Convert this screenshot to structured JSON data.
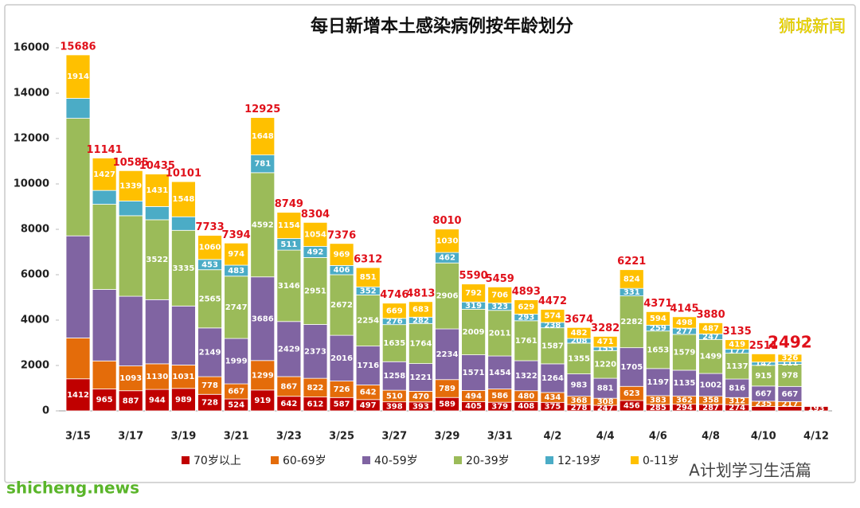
{
  "chart_data": {
    "type": "stacked_bar",
    "title": "每日新增本土感染病例按年龄划分",
    "watermark": "狮城新闻",
    "footer_site": "shicheng.news",
    "footer_account": "A计划学习生活篇",
    "categories": [
      "3/15",
      null,
      "3/17",
      null,
      "3/19",
      null,
      "3/21",
      null,
      "3/23",
      null,
      "3/25",
      null,
      "3/27",
      null,
      "3/29",
      null,
      "3/31",
      null,
      "4/2",
      null,
      "4/4",
      null,
      "4/6",
      null,
      "4/8",
      null,
      "4/10",
      null,
      "4/12"
    ],
    "ylim": [
      0,
      16000
    ],
    "yticks": [
      0,
      2000,
      4000,
      6000,
      8000,
      10000,
      12000,
      14000,
      16000
    ],
    "grid": false,
    "series": [
      {
        "name": "70岁以上",
        "color": "#c00000",
        "values": [
          1412,
          965,
          887,
          944,
          989,
          728,
          524,
          919,
          642,
          612,
          587,
          497,
          398,
          393,
          589,
          405,
          379,
          408,
          375,
          278,
          247,
          456,
          285,
          294,
          287,
          274,
          191,
          193,
          193
        ],
        "value_labels": [
          "1412",
          "965",
          "887",
          "944",
          "989",
          "728",
          "524",
          "919",
          "642",
          "612",
          "587",
          "497",
          "398",
          "393",
          "589",
          "405",
          "379",
          "408",
          "375",
          "278",
          "247",
          "456",
          "285",
          "294",
          "287",
          "274",
          null,
          null,
          "193"
        ]
      },
      {
        "name": "60-69岁",
        "color": "#e46c0a",
        "values": [
          1800,
          1235,
          1093,
          1130,
          1031,
          778,
          667,
          1299,
          867,
          822,
          726,
          642,
          510,
          470,
          789,
          494,
          586,
          480,
          434,
          368,
          308,
          623,
          383,
          362,
          358,
          312,
          235,
          217,
          null
        ],
        "value_labels": [
          null,
          null,
          "1093",
          "1130",
          "1031",
          "778",
          "667",
          "1299",
          "867",
          "822",
          "726",
          "642",
          "510",
          "470",
          "789",
          "494",
          "586",
          "480",
          "434",
          "368",
          "308",
          "623",
          "383",
          "362",
          "358",
          "312",
          "235",
          "217",
          null
        ]
      },
      {
        "name": "40-59岁",
        "color": "#8064a2",
        "values": [
          4500,
          3150,
          3070,
          2826,
          2600,
          2149,
          1999,
          3686,
          2429,
          2373,
          2016,
          1716,
          1258,
          1221,
          2234,
          1571,
          1454,
          1322,
          1264,
          983,
          881,
          1705,
          1197,
          1135,
          1002,
          816,
          667,
          667,
          null
        ],
        "value_labels": [
          null,
          null,
          null,
          null,
          null,
          "2149",
          "1999",
          "3686",
          "2429",
          "2373",
          "2016",
          "1716",
          "1258",
          "1221",
          "2234",
          "1571",
          "1454",
          "1322",
          "1264",
          "983",
          "881",
          "1705",
          "1197",
          "1135",
          "1002",
          "816",
          "667",
          "667",
          null
        ]
      },
      {
        "name": "20-39岁",
        "color": "#9bbb59",
        "values": [
          5180,
          3754,
          3550,
          3522,
          3335,
          2565,
          2747,
          4592,
          3146,
          2951,
          2672,
          2254,
          1635,
          1764,
          2906,
          2009,
          2011,
          1761,
          1587,
          1355,
          1220,
          2282,
          1653,
          1579,
          1499,
          1137,
          915,
          978,
          null
        ],
        "value_labels": [
          null,
          null,
          null,
          "3522",
          "3335",
          "2565",
          "2747",
          "4592",
          "3146",
          "2951",
          "2672",
          "2254",
          "1635",
          "1764",
          "2906",
          "2009",
          "2011",
          "1761",
          "1587",
          "1355",
          "1220",
          "2282",
          "1653",
          "1579",
          "1499",
          "1137",
          "915",
          "978",
          null
        ]
      },
      {
        "name": "12-19岁",
        "color": "#4bacc6",
        "values": [
          880,
          610,
          646,
          582,
          598,
          453,
          483,
          781,
          511,
          492,
          406,
          352,
          276,
          282,
          462,
          319,
          323,
          293,
          238,
          208,
          155,
          331,
          259,
          277,
          247,
          177,
          142,
          111,
          null
        ],
        "value_labels": [
          null,
          null,
          null,
          null,
          null,
          "453",
          "483",
          "781",
          "511",
          "492",
          "406",
          "352",
          "276",
          "282",
          "462",
          "319",
          "323",
          "293",
          "238",
          "208",
          "155",
          "331",
          "259",
          "277",
          "247",
          "177",
          "142",
          "111",
          null
        ]
      },
      {
        "name": "0-11岁",
        "color": "#ffc000",
        "values": [
          1914,
          1427,
          1339,
          1431,
          1548,
          1060,
          974,
          1648,
          1154,
          1054,
          969,
          851,
          669,
          683,
          1030,
          792,
          706,
          629,
          574,
          482,
          471,
          824,
          594,
          498,
          487,
          419,
          361,
          326,
          null
        ],
        "value_labels": [
          "1914",
          "1427",
          "1339",
          "1431",
          "1548",
          "1060",
          "974",
          "1648",
          "1154",
          "1054",
          "969",
          "851",
          "669",
          "683",
          "1030",
          "792",
          "706",
          "629",
          "574",
          "482",
          "471",
          "824",
          "594",
          "498",
          "487",
          "419",
          null,
          "326",
          null
        ]
      }
    ],
    "totals": [
      15686,
      11141,
      10585,
      10435,
      10101,
      7733,
      7394,
      12925,
      8749,
      8304,
      7376,
      6312,
      4746,
      4813,
      8010,
      5590,
      5459,
      4893,
      4472,
      3674,
      3282,
      6221,
      4371,
      4145,
      3880,
      3135,
      2511,
      2492,
      null
    ],
    "totals_color": "#e0101a"
  }
}
